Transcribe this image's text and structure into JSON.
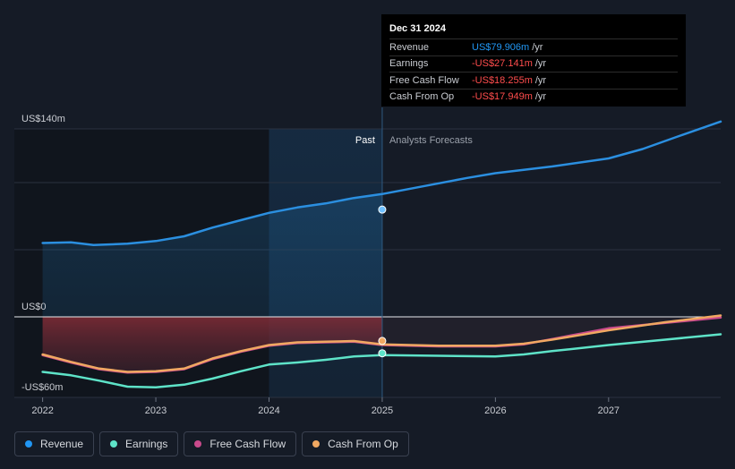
{
  "chart_data": {
    "type": "line",
    "y_label_top": "US$140m",
    "y_label_zero": "US$0",
    "y_label_bottom": "-US$60m",
    "ylim": [
      -60,
      140
    ],
    "x_tick_labels": [
      "2022",
      "2023",
      "2024",
      "2025",
      "2026",
      "2027"
    ],
    "x_tick_values": [
      2022,
      2023,
      2024,
      2025,
      2026,
      2027
    ],
    "xlim": [
      2021.75,
      2027.99
    ],
    "divider_x": 2025,
    "highlight_start": 2024,
    "past_label": "Past",
    "forecast_label": "Analysts Forecasts",
    "series": [
      {
        "name": "Revenue",
        "color": "#2b8fe0",
        "x": [
          2022.0,
          2022.25,
          2022.45,
          2022.75,
          2023.0,
          2023.25,
          2023.5,
          2023.75,
          2024.0,
          2024.25,
          2024.5,
          2024.75,
          2025.0,
          2025.25,
          2025.5,
          2025.75,
          2026.0,
          2026.5,
          2027.0,
          2027.3,
          2027.6,
          2027.99
        ],
        "values": [
          55,
          55.5,
          53.5,
          54.5,
          56.5,
          60,
          66.5,
          72,
          77.5,
          81.5,
          84.5,
          88.5,
          91.5,
          95.5,
          99.5,
          103.5,
          107,
          112,
          118,
          125,
          134,
          145.5
        ]
      },
      {
        "name": "Earnings",
        "color": "#5ee3c8",
        "x": [
          2022.0,
          2022.25,
          2022.5,
          2022.75,
          2023.0,
          2023.25,
          2023.5,
          2023.75,
          2024.0,
          2024.25,
          2024.5,
          2024.75,
          2025.0,
          2025.5,
          2026.0,
          2026.25,
          2026.5,
          2027.0,
          2027.5,
          2027.99
        ],
        "values": [
          -41,
          -43.5,
          -47.5,
          -52,
          -52.5,
          -50.5,
          -46,
          -40.5,
          -35.5,
          -34,
          -32,
          -29.5,
          -28.5,
          -29,
          -29.5,
          -28,
          -25.5,
          -21,
          -17,
          -13
        ]
      },
      {
        "name": "Free Cash Flow",
        "color": "#c94a8c",
        "x": [
          2022.0,
          2022.25,
          2022.5,
          2022.75,
          2023.0,
          2023.25,
          2023.5,
          2023.75,
          2024.0,
          2024.25,
          2024.5,
          2024.75,
          2025.0,
          2025.5,
          2026.0,
          2026.25,
          2026.5,
          2026.75,
          2027.0,
          2027.5,
          2027.99
        ],
        "values": [
          -28.5,
          -34,
          -39,
          -41.5,
          -41,
          -39,
          -31.5,
          -26,
          -21.5,
          -19.5,
          -19,
          -18.5,
          -21,
          -22,
          -22,
          -20.5,
          -16.5,
          -12.5,
          -8.5,
          -4.5,
          -0.5
        ]
      },
      {
        "name": "Cash From Op",
        "color": "#f0a862",
        "x": [
          2022.0,
          2022.25,
          2022.5,
          2022.75,
          2023.0,
          2023.25,
          2023.5,
          2023.75,
          2024.0,
          2024.25,
          2024.5,
          2024.75,
          2025.0,
          2025.5,
          2026.0,
          2026.25,
          2026.5,
          2026.75,
          2027.0,
          2027.5,
          2027.99
        ],
        "values": [
          -28,
          -33.5,
          -38.5,
          -41,
          -40.5,
          -38.5,
          -31,
          -25.5,
          -21,
          -19,
          -18.5,
          -18,
          -20.5,
          -21.5,
          -21.5,
          -20,
          -17,
          -13.5,
          -10,
          -4,
          1
        ]
      }
    ],
    "hover": {
      "x": 2025,
      "revenue": 79.906,
      "earnings": -27.141,
      "cash_from_op": -17.949
    }
  },
  "tooltip": {
    "date": "Dec 31 2024",
    "rows": [
      {
        "label": "Revenue",
        "value": "US$79.906m",
        "unit": "/yr",
        "color": "#2196f3"
      },
      {
        "label": "Earnings",
        "value": "-US$27.141m",
        "unit": "/yr",
        "color": "#ff4d4d"
      },
      {
        "label": "Free Cash Flow",
        "value": "-US$18.255m",
        "unit": "/yr",
        "color": "#ff4d4d"
      },
      {
        "label": "Cash From Op",
        "value": "-US$17.949m",
        "unit": "/yr",
        "color": "#ff4d4d"
      }
    ]
  },
  "legend": [
    {
      "label": "Revenue",
      "color": "#2196f3"
    },
    {
      "label": "Earnings",
      "color": "#5ee3c8"
    },
    {
      "label": "Free Cash Flow",
      "color": "#c94a8c"
    },
    {
      "label": "Cash From Op",
      "color": "#f0a862"
    }
  ]
}
